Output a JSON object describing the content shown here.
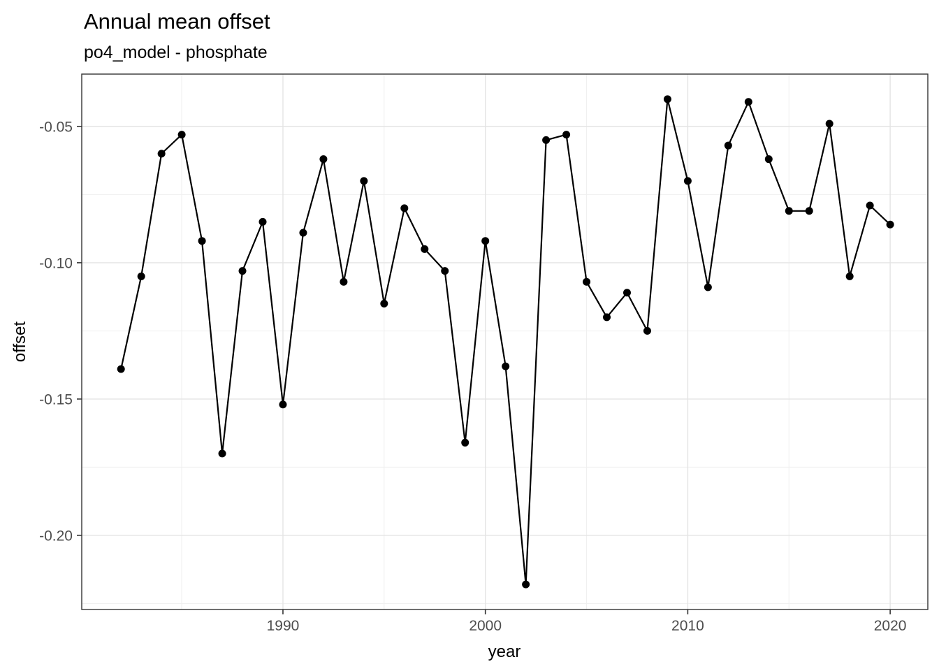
{
  "chart_data": {
    "type": "line",
    "title": "Annual mean offset",
    "subtitle": "po4_model - phosphate",
    "xlabel": "year",
    "ylabel": "offset",
    "series": [
      {
        "name": "annual_mean_offset",
        "x": [
          1982,
          1983,
          1984,
          1985,
          1986,
          1987,
          1988,
          1989,
          1990,
          1991,
          1992,
          1993,
          1994,
          1995,
          1996,
          1997,
          1998,
          1999,
          2000,
          2001,
          2002,
          2003,
          2004,
          2005,
          2006,
          2007,
          2008,
          2009,
          2010,
          2011,
          2012,
          2013,
          2014,
          2015,
          2016,
          2017,
          2018,
          2019,
          2020
        ],
        "y": [
          -0.139,
          -0.105,
          -0.06,
          -0.053,
          -0.092,
          -0.17,
          -0.103,
          -0.085,
          -0.152,
          -0.089,
          -0.062,
          -0.107,
          -0.07,
          -0.115,
          -0.08,
          -0.095,
          -0.103,
          -0.166,
          -0.092,
          -0.138,
          -0.218,
          -0.055,
          -0.053,
          -0.107,
          -0.12,
          -0.111,
          -0.125,
          -0.04,
          -0.07,
          -0.109,
          -0.057,
          -0.041,
          -0.062,
          -0.081,
          -0.081,
          -0.049,
          -0.105,
          -0.079,
          -0.086
        ]
      }
    ],
    "xlim": [
      1980.06,
      2021.86
    ],
    "ylim": [
      -0.2272,
      -0.0308
    ],
    "x_major_ticks": [
      1990,
      2000,
      2010,
      2020
    ],
    "x_tick_labels": [
      "1990",
      "2000",
      "2010",
      "2020"
    ],
    "x_minor_ticks": [
      1985,
      1995,
      2005,
      2015
    ],
    "y_major_ticks": [
      -0.05,
      -0.1,
      -0.15,
      -0.2
    ],
    "y_tick_labels": [
      "-0.05",
      "-0.10",
      "-0.15",
      "-0.20"
    ],
    "y_minor_ticks": [
      -0.075,
      -0.125,
      -0.175,
      -0.225
    ],
    "grid": "major+minor",
    "legend": "none",
    "marker": "filled-circle",
    "style": {
      "line_color": "#000000",
      "point_color": "#000000",
      "panel_background": "#ffffff",
      "panel_border_color": "#333333",
      "grid_major_color": "#e4e4e4",
      "grid_minor_color": "#efefef",
      "tick_color": "#333333",
      "tick_label_color": "#4d4d4d",
      "axis_title_color": "#000000",
      "title_color": "#000000"
    }
  }
}
